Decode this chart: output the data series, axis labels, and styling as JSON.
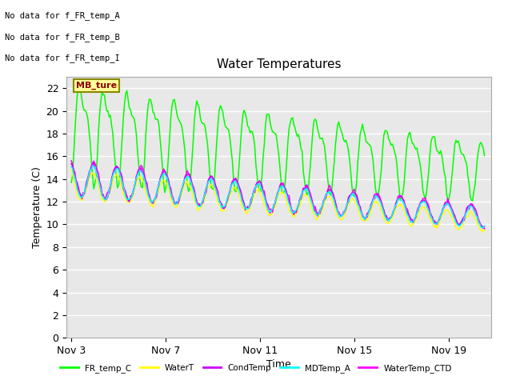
{
  "title": "Water Temperatures",
  "xlabel": "Time",
  "ylabel": "Temperature (C)",
  "ylim": [
    0,
    23
  ],
  "yticks": [
    0,
    2,
    4,
    6,
    8,
    10,
    12,
    14,
    16,
    18,
    20,
    22
  ],
  "background_color": "#ffffff",
  "plot_bg_odd": "#e8e8e8",
  "plot_bg_even": "#d8d8d8",
  "grid_color": "#ffffff",
  "annotations": [
    "No data for f_FR_temp_A",
    "No data for f_FR_temp_B",
    "No data for f_FR_temp_I"
  ],
  "tooltip_text": "MB_ture",
  "legend_entries": [
    {
      "label": "FR_temp_C",
      "color": "#00ff00"
    },
    {
      "label": "WaterT",
      "color": "#ffff00"
    },
    {
      "label": "CondTemp",
      "color": "#cc00ff"
    },
    {
      "label": "MDTemp_A",
      "color": "#00ffff"
    },
    {
      "label": "WaterTemp_CTD",
      "color": "#ff00ff"
    }
  ],
  "xticklabels": [
    "Nov 3",
    "Nov 7",
    "Nov 11",
    "Nov 15",
    "Nov 19"
  ],
  "xtick_positions": [
    3,
    7,
    11,
    15,
    19
  ],
  "xlim": [
    2.8,
    20.8
  ],
  "num_days": 19,
  "start_day": 3
}
